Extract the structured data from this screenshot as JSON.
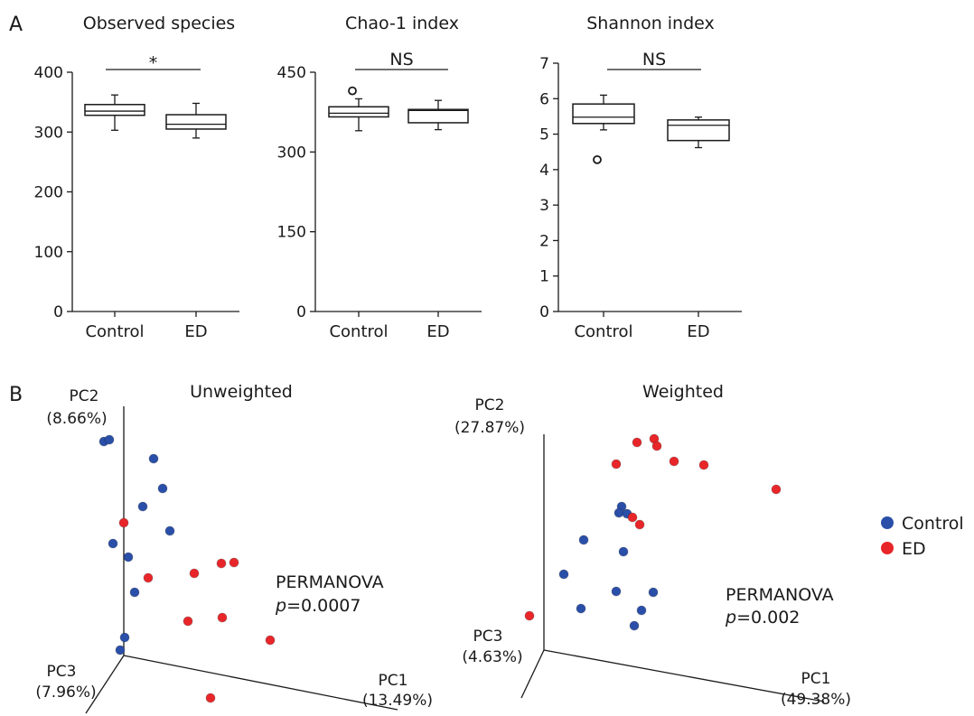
{
  "panel_a_label": "A",
  "panel_b_label": "B",
  "colors": {
    "control": "#2a4fa8",
    "ed": "#e8262a"
  },
  "chart_data": [
    {
      "type": "box",
      "title": "Observed species",
      "categories": [
        "Control",
        "ED"
      ],
      "ylim": [
        0,
        400
      ],
      "yticks": [
        0,
        100,
        200,
        300,
        400
      ],
      "significance": "*",
      "boxes": [
        {
          "category": "Control",
          "whisker_low": 303,
          "q1": 328,
          "median": 335,
          "q3": 346,
          "whisker_high": 362,
          "outliers": []
        },
        {
          "category": "ED",
          "whisker_low": 290,
          "q1": 305,
          "median": 313,
          "q3": 329,
          "whisker_high": 348,
          "outliers": []
        }
      ]
    },
    {
      "type": "box",
      "title": "Chao-1 index",
      "categories": [
        "Control",
        "ED"
      ],
      "ylim": [
        0,
        450
      ],
      "yticks": [
        0,
        150,
        300,
        450
      ],
      "significance": "NS",
      "boxes": [
        {
          "category": "Control",
          "whisker_low": 340,
          "q1": 366,
          "median": 373,
          "q3": 385,
          "whisker_high": 400,
          "outliers": [
            415
          ]
        },
        {
          "category": "ED",
          "whisker_low": 342,
          "q1": 355,
          "median": 378,
          "q3": 380,
          "whisker_high": 397,
          "outliers": []
        }
      ]
    },
    {
      "type": "box",
      "title": "Shannon index",
      "categories": [
        "Control",
        "ED"
      ],
      "ylim": [
        0,
        7
      ],
      "yticks": [
        0,
        1,
        2,
        3,
        4,
        5,
        6,
        7
      ],
      "significance": "NS",
      "boxes": [
        {
          "category": "Control",
          "whisker_low": 5.12,
          "q1": 5.3,
          "median": 5.48,
          "q3": 5.85,
          "whisker_high": 6.1,
          "outliers": [
            4.28
          ]
        },
        {
          "category": "ED",
          "whisker_low": 4.62,
          "q1": 4.82,
          "median": 5.25,
          "q3": 5.4,
          "whisker_high": 5.48,
          "outliers": []
        }
      ]
    },
    {
      "type": "scatter",
      "title": "Unweighted",
      "axes": {
        "x": "PC1",
        "x_pct": "(13.49%)",
        "y": "PC2",
        "y_pct": "(8.66%)",
        "z": "PC3",
        "z_pct": "(7.96%)"
      },
      "stat_label": "PERMANOVA",
      "p_label": "p",
      "p_value": "=0.0007",
      "series": [
        {
          "name": "Control",
          "points": [
            [
              115,
              489
            ],
            [
              121,
              487
            ],
            [
              170,
              508
            ],
            [
              180,
              541
            ],
            [
              158,
              561
            ],
            [
              188,
              588
            ],
            [
              125,
              602
            ],
            [
              142,
              617
            ],
            [
              149,
              656
            ],
            [
              138,
              706
            ],
            [
              133,
              720
            ]
          ]
        },
        {
          "name": "ED",
          "points": [
            [
              137,
              579
            ],
            [
              164,
              640
            ],
            [
              215,
              635
            ],
            [
              245,
              624
            ],
            [
              259,
              623
            ],
            [
              208,
              688
            ],
            [
              246,
              684
            ],
            [
              299,
              709
            ],
            [
              233,
              773
            ]
          ]
        }
      ]
    },
    {
      "type": "scatter",
      "title": "Weighted",
      "axes": {
        "x": "PC1",
        "x_pct": "(49.38%)",
        "y": "PC2",
        "y_pct": "(27.87%)",
        "z": "PC3",
        "z_pct": "(4.63%)"
      },
      "stat_label": "PERMANOVA",
      "p_label": "p",
      "p_value": "=0.002",
      "series": [
        {
          "name": "Control",
          "points": [
            [
              688,
              561
            ],
            [
              685,
              568
            ],
            [
              694,
              569
            ],
            [
              646,
              598
            ],
            [
              690,
              611
            ],
            [
              624,
              636
            ],
            [
              682,
              655
            ],
            [
              723,
              656
            ],
            [
              643,
              674
            ],
            [
              710,
              676
            ],
            [
              702,
              693
            ]
          ]
        },
        {
          "name": "ED",
          "points": [
            [
              705,
              490
            ],
            [
              724,
              486
            ],
            [
              727,
              494
            ],
            [
              682,
              514
            ],
            [
              746,
              511
            ],
            [
              779,
              515
            ],
            [
              859,
              542
            ],
            [
              700,
              573
            ],
            [
              708,
              581
            ],
            [
              586,
              682
            ]
          ]
        }
      ]
    }
  ],
  "legend": [
    {
      "label": "Control",
      "color": "#2a4fa8"
    },
    {
      "label": "ED",
      "color": "#e8262a"
    }
  ]
}
